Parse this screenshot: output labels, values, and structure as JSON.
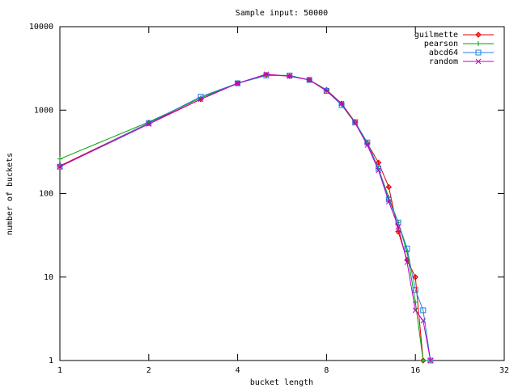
{
  "chart_data": {
    "type": "line",
    "title": "Sample input: 50000",
    "xlabel": "bucket length",
    "ylabel": "number of buckets",
    "x": [
      1,
      2,
      3,
      4,
      5,
      6,
      7,
      8,
      9,
      10,
      11,
      12,
      13,
      14,
      15,
      16,
      17,
      18
    ],
    "series": [
      {
        "name": "guilmette",
        "color": "#e00000",
        "marker": "diamond",
        "values": [
          215,
          700,
          1350,
          2100,
          2650,
          2550,
          2300,
          1750,
          1200,
          720,
          400,
          235,
          120,
          35,
          16,
          10,
          1,
          null
        ]
      },
      {
        "name": "pearson",
        "color": "#00a000",
        "marker": "plus",
        "values": [
          260,
          720,
          1400,
          2100,
          2600,
          2600,
          2300,
          1750,
          1150,
          700,
          400,
          200,
          90,
          45,
          20,
          5,
          1,
          1
        ]
      },
      {
        "name": "abcd64",
        "color": "#2080e0",
        "marker": "square",
        "values": [
          210,
          700,
          1450,
          2100,
          2600,
          2600,
          2300,
          1700,
          1150,
          720,
          410,
          200,
          85,
          45,
          22,
          7,
          4,
          1
        ]
      },
      {
        "name": "random",
        "color": "#c000c0",
        "marker": "cross",
        "values": [
          210,
          680,
          1350,
          2100,
          2700,
          2550,
          2300,
          1700,
          1200,
          700,
          380,
          190,
          80,
          40,
          15,
          4,
          3,
          1
        ]
      }
    ],
    "xlim": [
      1,
      32
    ],
    "xticks": [
      1,
      2,
      4,
      8,
      16,
      32
    ],
    "ylim": [
      1,
      10000
    ],
    "yticks": [
      1,
      10,
      100,
      1000,
      10000
    ],
    "log_x": true,
    "log_y": true,
    "legend": "top right"
  }
}
